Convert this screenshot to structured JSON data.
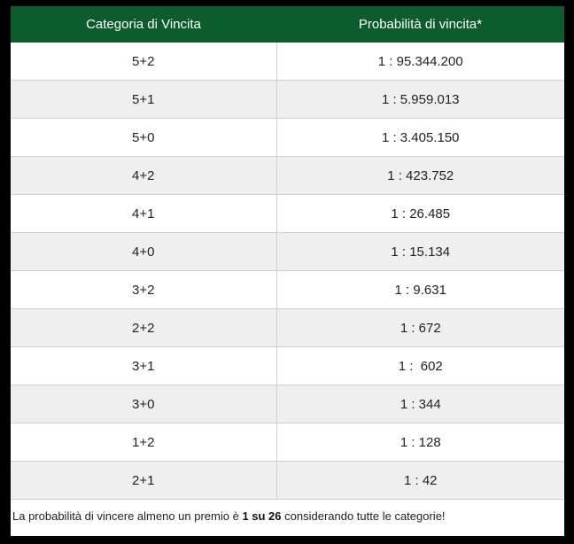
{
  "table": {
    "headers": {
      "category": "Categoria di Vincita",
      "probability": "Probabilità di vincita*"
    },
    "rows": [
      {
        "category": "5+2",
        "probability": "1 : 95.344.200"
      },
      {
        "category": "5+1",
        "probability": "1 : 5.959.013"
      },
      {
        "category": "5+0",
        "probability": "1 : 3.405.150"
      },
      {
        "category": "4+2",
        "probability": "1 : 423.752"
      },
      {
        "category": "4+1",
        "probability": "1 : 26.485"
      },
      {
        "category": "4+0",
        "probability": "1 : 15.134"
      },
      {
        "category": "3+2",
        "probability": "1 : 9.631"
      },
      {
        "category": "2+2",
        "probability": "1 : 672"
      },
      {
        "category": "3+1",
        "probability": "1 :  602"
      },
      {
        "category": "3+0",
        "probability": "1 : 344"
      },
      {
        "category": "1+2",
        "probability": "1 : 128"
      },
      {
        "category": "2+1",
        "probability": "1 : 42"
      }
    ]
  },
  "footnote": {
    "prefix": "La probabilità di vincere almeno un premio è ",
    "highlight": "1 su 26",
    "suffix": " considerando tutte le categorie!"
  },
  "colors": {
    "header_bg": "#0b5e2b",
    "header_text": "#ffffff",
    "alt_row_bg": "#efefef",
    "frame_bg": "#000000"
  }
}
